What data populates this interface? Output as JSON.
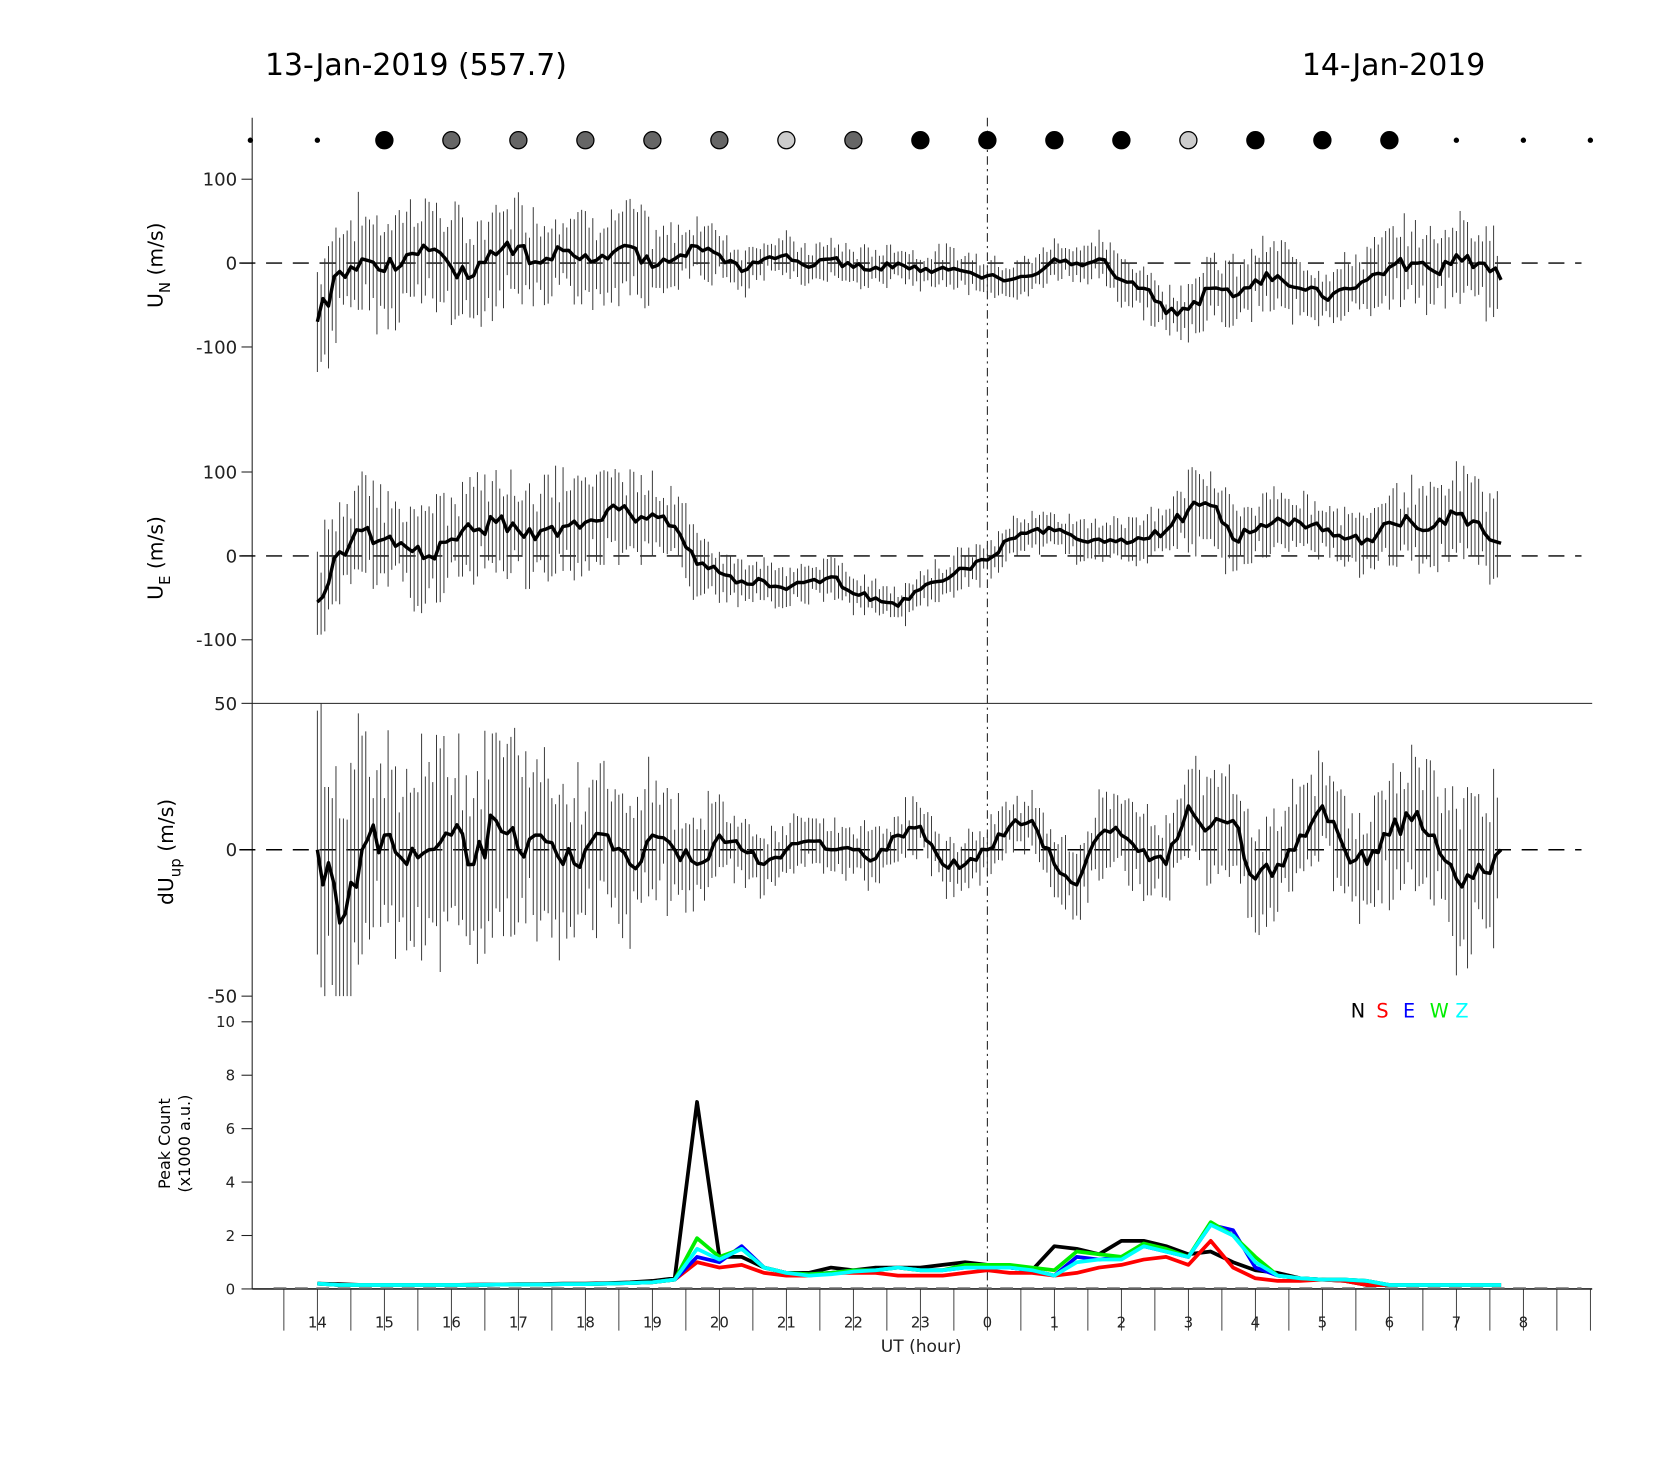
{
  "header": {
    "left_title": "13-Jan-2019 (557.7)",
    "right_title": "14-Jan-2019"
  },
  "chart_data": [
    {
      "type": "line",
      "panel": "meridional wind",
      "ylabel_main": "U",
      "ylabel_sub": "N",
      "ylabel_unit": " (m/s)",
      "ylim": [
        -160,
        175
      ],
      "yticks": [
        "100",
        "0",
        "-100"
      ],
      "ytick_values": [
        100,
        0,
        -100
      ],
      "x_hours": [
        14,
        14.333,
        14.667,
        15,
        15.333,
        15.667,
        16,
        16.333,
        16.667,
        17,
        17.333,
        17.667,
        18,
        18.333,
        18.667,
        19,
        19.333,
        19.667,
        20,
        20.333,
        20.667,
        21,
        21.333,
        21.667,
        22,
        22.333,
        22.667,
        23,
        23.333,
        23.667,
        24,
        24.333,
        24.667,
        25,
        25.333,
        25.667,
        26,
        26.333,
        26.667,
        27,
        27.333,
        27.667,
        28,
        28.333,
        28.667,
        29,
        29.333,
        29.667,
        30,
        30.333,
        30.667,
        31,
        31.333,
        31.667
      ],
      "values": [
        -70,
        -10,
        5,
        -10,
        10,
        15,
        -5,
        -15,
        10,
        20,
        0,
        15,
        10,
        5,
        20,
        -5,
        5,
        20,
        10,
        -10,
        5,
        10,
        -5,
        5,
        -5,
        -5,
        0,
        -10,
        -5,
        -10,
        -15,
        -20,
        -15,
        5,
        0,
        5,
        -20,
        -30,
        -60,
        -55,
        -30,
        -40,
        -20,
        -15,
        -30,
        -40,
        -30,
        -20,
        -5,
        0,
        -10,
        10,
        0,
        -20
      ],
      "errors": [
        60,
        55,
        55,
        55,
        55,
        55,
        55,
        50,
        50,
        50,
        50,
        45,
        45,
        45,
        45,
        35,
        30,
        30,
        25,
        25,
        20,
        20,
        20,
        20,
        20,
        20,
        20,
        20,
        20,
        20,
        20,
        20,
        20,
        20,
        20,
        25,
        25,
        25,
        25,
        35,
        35,
        35,
        35,
        35,
        35,
        30,
        30,
        35,
        40,
        40,
        40,
        45,
        45,
        70
      ]
    },
    {
      "type": "line",
      "panel": "zonal wind",
      "ylabel_main": "U",
      "ylabel_sub": "E",
      "ylabel_unit": " (m/s)",
      "ylim": [
        -175,
        175
      ],
      "yticks": [
        "100",
        "0",
        "-100"
      ],
      "ytick_values": [
        100,
        0,
        -100
      ],
      "values": [
        -55,
        5,
        30,
        20,
        10,
        0,
        20,
        30,
        40,
        30,
        30,
        35,
        40,
        55,
        50,
        50,
        35,
        -10,
        -20,
        -30,
        -30,
        -40,
        -30,
        -25,
        -45,
        -50,
        -60,
        -40,
        -30,
        -15,
        -5,
        20,
        30,
        30,
        20,
        20,
        20,
        20,
        30,
        55,
        60,
        20,
        30,
        45,
        40,
        30,
        20,
        20,
        40,
        40,
        35,
        50,
        40,
        15
      ],
      "errors": [
        55,
        50,
        50,
        50,
        50,
        50,
        50,
        50,
        50,
        50,
        50,
        50,
        45,
        45,
        45,
        40,
        35,
        30,
        25,
        20,
        20,
        20,
        20,
        20,
        20,
        20,
        20,
        20,
        20,
        20,
        20,
        20,
        20,
        20,
        20,
        25,
        25,
        25,
        35,
        40,
        40,
        35,
        30,
        30,
        30,
        30,
        30,
        35,
        40,
        40,
        40,
        45,
        45,
        60
      ]
    },
    {
      "type": "line",
      "panel": "vertical wind",
      "ylabel_main": "dU",
      "ylabel_sub": "up",
      "ylabel_unit": " (m/s)",
      "ylim": [
        -50,
        50
      ],
      "yticks": [
        "50",
        "0",
        "-50"
      ],
      "ytick_values": [
        50,
        0,
        -50
      ],
      "values": [
        0,
        -25,
        0,
        5,
        -5,
        0,
        5,
        -5,
        10,
        0,
        5,
        -5,
        0,
        5,
        -5,
        5,
        0,
        -5,
        5,
        0,
        -5,
        0,
        3,
        0,
        0,
        -3,
        5,
        8,
        -5,
        -5,
        0,
        8,
        10,
        -5,
        -12,
        5,
        5,
        0,
        -5,
        15,
        8,
        10,
        -10,
        -5,
        5,
        15,
        0,
        -5,
        5,
        10,
        5,
        -10,
        -5,
        0
      ],
      "errors": [
        40,
        35,
        30,
        30,
        30,
        30,
        30,
        30,
        30,
        25,
        25,
        25,
        25,
        20,
        20,
        20,
        15,
        15,
        10,
        10,
        8,
        8,
        8,
        8,
        8,
        8,
        8,
        8,
        8,
        8,
        8,
        8,
        8,
        10,
        10,
        12,
        12,
        12,
        12,
        15,
        15,
        15,
        15,
        15,
        15,
        15,
        15,
        15,
        20,
        20,
        20,
        25,
        25,
        30
      ]
    },
    {
      "type": "line",
      "panel": "peak count",
      "ylabel_line1": "Peak Count",
      "ylabel_line2": "(x1000 a.u.)",
      "ylim": [
        0,
        10
      ],
      "yticks": [
        "0",
        "2",
        "4",
        "6",
        "8",
        "10"
      ],
      "ytick_values": [
        0,
        2,
        4,
        6,
        8,
        10
      ],
      "xlabel": "UT (hour)",
      "xticks": [
        "14",
        "15",
        "16",
        "17",
        "18",
        "19",
        "20",
        "21",
        "22",
        "23",
        "0",
        "1",
        "2",
        "3",
        "4",
        "5",
        "6",
        "7",
        "8"
      ],
      "xtick_values": [
        14,
        15,
        16,
        17,
        18,
        19,
        20,
        21,
        22,
        23,
        24,
        25,
        26,
        27,
        28,
        29,
        30,
        31,
        32
      ],
      "xlim": [
        13.03,
        33.03
      ],
      "series": [
        {
          "name": "N",
          "color": "#000000",
          "values": [
            0.2,
            0.18,
            0.15,
            0.15,
            0.15,
            0.15,
            0.15,
            0.16,
            0.17,
            0.18,
            0.18,
            0.2,
            0.2,
            0.22,
            0.25,
            0.3,
            0.4,
            7.0,
            1.2,
            1.2,
            0.8,
            0.6,
            0.6,
            0.8,
            0.7,
            0.8,
            0.8,
            0.8,
            0.9,
            1.0,
            0.9,
            0.8,
            0.7,
            1.6,
            1.5,
            1.3,
            1.8,
            1.8,
            1.6,
            1.3,
            1.4,
            1.0,
            0.7,
            0.6,
            0.4,
            0.35,
            0.3,
            0.15,
            0.15,
            0.15,
            0.15,
            0.15,
            0.15,
            0.15
          ]
        },
        {
          "name": "S",
          "color": "#ff0000",
          "values": [
            0.2,
            0.15,
            0.15,
            0.15,
            0.15,
            0.15,
            0.15,
            0.15,
            0.16,
            0.17,
            0.17,
            0.18,
            0.18,
            0.2,
            0.22,
            0.25,
            0.35,
            1.0,
            0.8,
            0.9,
            0.6,
            0.5,
            0.5,
            0.6,
            0.6,
            0.6,
            0.5,
            0.5,
            0.5,
            0.6,
            0.7,
            0.6,
            0.6,
            0.5,
            0.6,
            0.8,
            0.9,
            1.1,
            1.2,
            0.9,
            1.8,
            0.8,
            0.4,
            0.3,
            0.3,
            0.35,
            0.3,
            0.15,
            0.15,
            0.15,
            0.15,
            0.15,
            0.15,
            0.15
          ]
        },
        {
          "name": "E",
          "color": "#0000ff",
          "values": [
            0.2,
            0.15,
            0.15,
            0.15,
            0.15,
            0.15,
            0.15,
            0.15,
            0.16,
            0.17,
            0.17,
            0.18,
            0.18,
            0.2,
            0.22,
            0.25,
            0.35,
            1.2,
            1.0,
            1.6,
            0.8,
            0.6,
            0.55,
            0.6,
            0.7,
            0.7,
            0.8,
            0.7,
            0.7,
            0.8,
            0.8,
            0.8,
            0.7,
            0.5,
            1.2,
            1.1,
            1.2,
            1.6,
            1.4,
            1.2,
            2.4,
            2.2,
            0.8,
            0.5,
            0.4,
            0.35,
            0.35,
            0.3,
            0.15,
            0.15,
            0.15,
            0.15,
            0.15,
            0.15
          ]
        },
        {
          "name": "W",
          "color": "#00ee00",
          "values": [
            0.2,
            0.15,
            0.15,
            0.15,
            0.15,
            0.15,
            0.15,
            0.15,
            0.16,
            0.17,
            0.17,
            0.18,
            0.18,
            0.2,
            0.22,
            0.25,
            0.35,
            1.9,
            1.2,
            1.5,
            0.8,
            0.6,
            0.55,
            0.6,
            0.7,
            0.7,
            0.8,
            0.7,
            0.7,
            0.9,
            0.9,
            0.9,
            0.8,
            0.7,
            1.4,
            1.3,
            1.2,
            1.7,
            1.5,
            1.2,
            2.5,
            2.0,
            1.2,
            0.5,
            0.4,
            0.35,
            0.35,
            0.3,
            0.15,
            0.15,
            0.15,
            0.15,
            0.15,
            0.15
          ]
        },
        {
          "name": "Z",
          "color": "#00ffff",
          "values": [
            0.2,
            0.15,
            0.15,
            0.15,
            0.15,
            0.15,
            0.15,
            0.15,
            0.16,
            0.17,
            0.17,
            0.18,
            0.18,
            0.2,
            0.22,
            0.25,
            0.35,
            1.5,
            1.1,
            1.5,
            0.8,
            0.6,
            0.5,
            0.55,
            0.65,
            0.7,
            0.8,
            0.7,
            0.7,
            0.8,
            0.8,
            0.8,
            0.7,
            0.5,
            1.0,
            1.1,
            1.1,
            1.6,
            1.4,
            1.2,
            2.4,
            2.0,
            1.0,
            0.5,
            0.4,
            0.35,
            0.35,
            0.3,
            0.15,
            0.15,
            0.15,
            0.15,
            0.15,
            0.15
          ]
        }
      ]
    }
  ],
  "sky_markers": [
    {
      "hour": 13,
      "type": "dot",
      "color": "#000000"
    },
    {
      "hour": 14,
      "type": "dot",
      "color": "#000000"
    },
    {
      "hour": 15,
      "type": "circle",
      "color": "#000000"
    },
    {
      "hour": 16,
      "type": "circle",
      "color": "#666666"
    },
    {
      "hour": 17,
      "type": "circle",
      "color": "#666666"
    },
    {
      "hour": 18,
      "type": "circle",
      "color": "#666666"
    },
    {
      "hour": 19,
      "type": "circle",
      "color": "#666666"
    },
    {
      "hour": 20,
      "type": "circle",
      "color": "#666666"
    },
    {
      "hour": 21,
      "type": "circle",
      "color": "#cccccc"
    },
    {
      "hour": 22,
      "type": "circle",
      "color": "#666666"
    },
    {
      "hour": 23,
      "type": "circle",
      "color": "#000000"
    },
    {
      "hour": 24,
      "type": "circle",
      "color": "#000000"
    },
    {
      "hour": 25,
      "type": "circle",
      "color": "#000000"
    },
    {
      "hour": 26,
      "type": "circle",
      "color": "#000000"
    },
    {
      "hour": 27,
      "type": "circle",
      "color": "#cccccc"
    },
    {
      "hour": 28,
      "type": "circle",
      "color": "#000000"
    },
    {
      "hour": 29,
      "type": "circle",
      "color": "#000000"
    },
    {
      "hour": 30,
      "type": "circle",
      "color": "#000000"
    },
    {
      "hour": 31,
      "type": "dot",
      "color": "#000000"
    },
    {
      "hour": 32,
      "type": "dot",
      "color": "#000000"
    },
    {
      "hour": 33,
      "type": "dot",
      "color": "#000000"
    }
  ],
  "midnight_hour": 24
}
